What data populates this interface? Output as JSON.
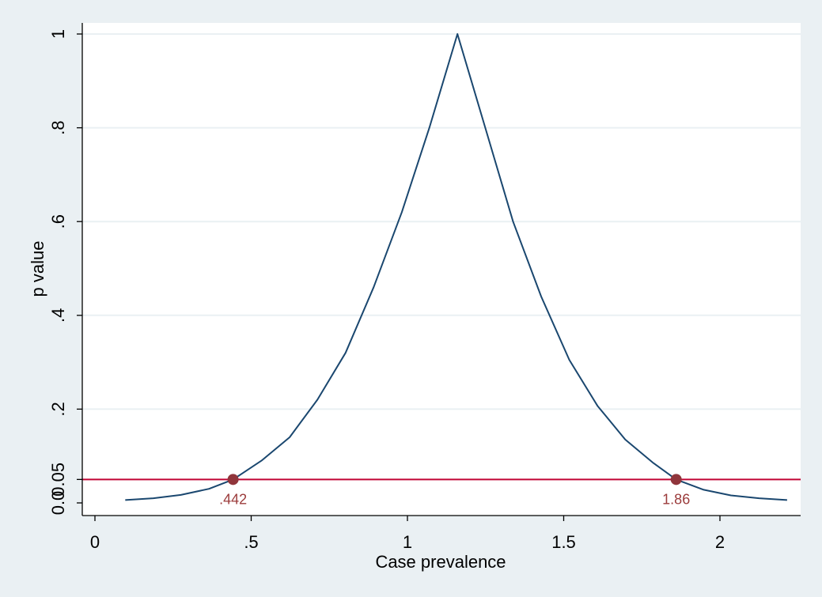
{
  "chart_data": {
    "type": "line",
    "xlabel": "Case prevalence",
    "ylabel": "p value",
    "xlim": [
      0,
      2.25
    ],
    "ylim": [
      0,
      1
    ],
    "x_ticks": [
      {
        "value": 0,
        "label": "0"
      },
      {
        "value": 0.5,
        "label": ".5"
      },
      {
        "value": 1,
        "label": "1"
      },
      {
        "value": 1.5,
        "label": "1.5"
      },
      {
        "value": 2,
        "label": "2"
      }
    ],
    "y_ticks": [
      {
        "value": 0,
        "label": "0.0"
      },
      {
        "value": 0.05,
        "label": "0.05"
      },
      {
        "value": 0.2,
        "label": ".2"
      },
      {
        "value": 0.4,
        "label": ".4"
      },
      {
        "value": 0.6,
        "label": ".6"
      },
      {
        "value": 0.8,
        "label": ".8"
      },
      {
        "value": 1,
        "label": "1"
      }
    ],
    "grid": true,
    "series": [
      {
        "x": [
          0.097,
          0.187,
          0.275,
          0.365,
          0.442,
          0.533,
          0.623,
          0.712,
          0.802,
          0.892,
          0.982,
          1.07,
          1.16,
          1.249,
          1.338,
          1.428,
          1.518,
          1.608,
          1.697,
          1.787,
          1.86,
          1.948,
          2.035,
          2.125,
          2.215
        ],
        "y": [
          0.006,
          0.01,
          0.017,
          0.03,
          0.05,
          0.09,
          0.14,
          0.22,
          0.32,
          0.46,
          0.62,
          0.8,
          1.0,
          0.8,
          0.6,
          0.44,
          0.305,
          0.207,
          0.135,
          0.085,
          0.05,
          0.028,
          0.016,
          0.01,
          0.006
        ],
        "color": "#1a476f"
      }
    ],
    "reference_line": {
      "y": 0.05,
      "color": "#c10534"
    },
    "markers": [
      {
        "x": 0.442,
        "y": 0.05,
        "label": ".442"
      },
      {
        "x": 1.86,
        "y": 0.05,
        "label": "1.86"
      }
    ],
    "marker_color": "#90353b"
  }
}
